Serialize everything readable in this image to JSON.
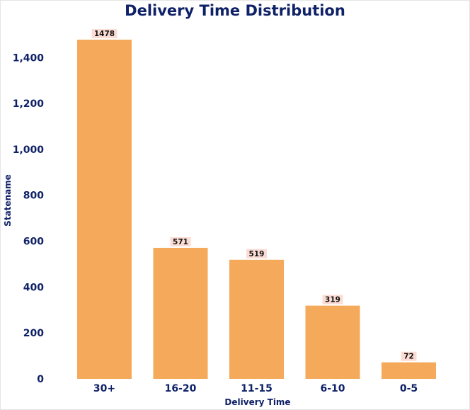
{
  "chart_data": {
    "type": "bar",
    "title": "Delivery Time Distribution",
    "xlabel": "Delivery Time",
    "ylabel": "Statename",
    "categories": [
      "30+",
      "16-20",
      "11-15",
      "6-10",
      "0-5"
    ],
    "values": [
      1478,
      571,
      519,
      319,
      72
    ],
    "data_labels": [
      "1478",
      "571",
      "519",
      "319",
      "72"
    ],
    "yticks": [
      0,
      200,
      400,
      600,
      800,
      1000,
      1200,
      1400
    ],
    "ytick_labels": [
      "0",
      "200",
      "400",
      "600",
      "800",
      "1,000",
      "1,200",
      "1,400"
    ],
    "ylim": [
      0,
      1478
    ],
    "grid": false,
    "legend": "none",
    "bar_color": "#f5a95a",
    "label_bg_color": "#fbdcd4",
    "text_color": "#0f2167"
  }
}
